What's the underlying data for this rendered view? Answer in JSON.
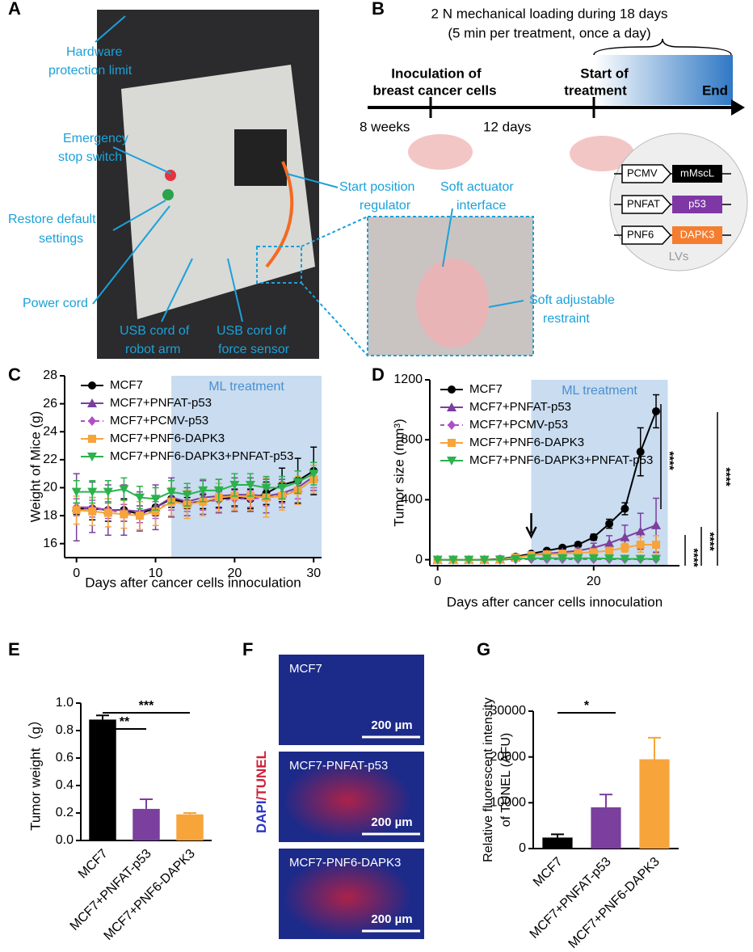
{
  "panel_letters": [
    "A",
    "B",
    "C",
    "D",
    "E",
    "F",
    "G"
  ],
  "panel_a": {
    "labels": [
      "Hardware",
      "protection limit",
      "Emergency",
      "stop switch",
      "Restore default",
      "settings",
      "Power cord",
      "USB cord of",
      "robot arm",
      "USB cord of",
      "force sensor",
      "Start position",
      "regulator",
      "Soft actuator",
      "interface",
      "Soft adjustable",
      "restraint"
    ]
  },
  "panel_b": {
    "title": [
      "2 N mechanical loading during 18 days",
      "(5 min per treatment, once a day)"
    ],
    "timeline": [
      "Inoculation of",
      "breast cancer cells",
      "Start of",
      "treatment",
      "End",
      "8 weeks",
      "12 days"
    ],
    "constructs": [
      [
        "PCMV",
        "mMscL"
      ],
      [
        "PNFAT",
        "p53"
      ],
      [
        "PNF6",
        "DAPK3"
      ]
    ],
    "vector": "LVs"
  },
  "panel_f": {
    "y_label": [
      "DAPI",
      "/TUNEL"
    ],
    "images": [
      "MCF7",
      "MCF7-PNFAT-p53",
      "MCF7-PNF6-DAPK3"
    ],
    "scale_bar": "200 µm"
  },
  "chart_data": [
    {
      "type": "line",
      "x_label": "Days after cancer cells innoculation",
      "y_label": "Weight of Mice (g)",
      "shade_label": "ML treatment",
      "shade": [
        12,
        31
      ],
      "x": [
        0,
        2,
        4,
        6,
        8,
        10,
        12,
        14,
        16,
        18,
        20,
        22,
        24,
        26,
        28,
        30
      ],
      "xlim": [
        -1.5,
        31
      ],
      "xticks": [
        0,
        10,
        20,
        30
      ],
      "ylim": [
        15,
        28
      ],
      "yticks": [
        16,
        18,
        20,
        22,
        24,
        26,
        28
      ],
      "series": [
        {
          "name": "MCF7",
          "color": "#000000",
          "marker": "circle",
          "values": [
            18.5,
            18.5,
            18.4,
            18.4,
            18.1,
            18.6,
            19.2,
            18.9,
            19.0,
            19.2,
            19.3,
            19.2,
            19.6,
            20.2,
            20.5,
            21.2
          ],
          "errors": [
            0.4,
            0.8,
            0.8,
            0.8,
            0.6,
            0.6,
            0.6,
            0.4,
            0.5,
            0.6,
            0.6,
            0.7,
            0.8,
            1.2,
            1.6,
            1.7
          ]
        },
        {
          "name": "MCF7+PNFAT-p53",
          "color": "#7b3f9e",
          "marker": "triangle",
          "values": [
            18.6,
            18.6,
            18.4,
            18.4,
            18.3,
            18.6,
            19.3,
            19.0,
            19.3,
            19.4,
            19.5,
            19.5,
            19.4,
            19.6,
            20.0,
            20.8
          ],
          "errors": [
            2.4,
            1.8,
            1.8,
            1.8,
            1.4,
            1.6,
            1.4,
            1.0,
            1.2,
            1.2,
            1.2,
            1.2,
            1.2,
            1.0,
            1.2,
            1.0
          ]
        },
        {
          "name": "MCF7+PCMV-p53",
          "color": "#b04fc4",
          "marker": "diamond",
          "dash": true,
          "values": [
            18.6,
            18.5,
            18.4,
            18.2,
            18.1,
            18.4,
            19.0,
            18.9,
            19.0,
            19.1,
            19.2,
            19.2,
            19.3,
            19.5,
            19.8,
            20.6
          ],
          "errors": [
            0.6,
            0.6,
            0.6,
            0.6,
            0.6,
            0.6,
            0.6,
            0.6,
            0.6,
            0.6,
            0.6,
            0.6,
            0.6,
            0.6,
            0.6,
            0.6
          ]
        },
        {
          "name": "MCF7+PNF6-DAPK3",
          "color": "#f7a43b",
          "marker": "square",
          "values": [
            18.4,
            18.3,
            18.2,
            18.1,
            18.0,
            18.3,
            19.0,
            18.8,
            19.0,
            19.3,
            19.4,
            19.4,
            19.3,
            19.4,
            19.8,
            20.6
          ],
          "errors": [
            1.0,
            1.0,
            1.0,
            1.0,
            1.0,
            1.0,
            1.0,
            1.0,
            1.0,
            1.0,
            1.0,
            1.0,
            1.4,
            1.0,
            1.0,
            1.0
          ]
        },
        {
          "name": "MCF7+PNF6-DAPK3+PNFAT-p53",
          "color": "#2bb24c",
          "marker": "triangle-down",
          "values": [
            19.7,
            19.7,
            19.7,
            19.9,
            19.3,
            19.2,
            19.7,
            19.5,
            19.8,
            19.8,
            20.2,
            20.2,
            20.0,
            20.0,
            20.4,
            21.0
          ],
          "errors": [
            0.8,
            0.8,
            0.8,
            0.8,
            0.8,
            0.8,
            0.8,
            0.8,
            0.8,
            0.8,
            0.8,
            0.8,
            0.8,
            0.8,
            0.8,
            0.8
          ]
        }
      ]
    },
    {
      "type": "line",
      "x_label": "Days after cancer cells innoculation",
      "y_label": "Tumor size (mm³)",
      "shade_label": "ML treatment",
      "shade": [
        12,
        29.5
      ],
      "arrow_x": 12,
      "x": [
        0,
        2,
        4,
        6,
        8,
        10,
        12,
        14,
        16,
        18,
        20,
        22,
        24,
        26,
        28
      ],
      "xlim": [
        -1,
        31
      ],
      "xticks": [
        0,
        20
      ],
      "ylim": [
        -40,
        1200
      ],
      "yticks": [
        0,
        400,
        800,
        1200
      ],
      "annotations": [
        "****",
        "****",
        "****",
        "****"
      ],
      "series": [
        {
          "name": "MCF7",
          "color": "#000000",
          "marker": "circle",
          "values": [
            0,
            0,
            0,
            0,
            5,
            20,
            40,
            60,
            80,
            100,
            150,
            240,
            340,
            720,
            990
          ],
          "errors": [
            0,
            0,
            0,
            0,
            2,
            5,
            8,
            10,
            12,
            15,
            20,
            30,
            40,
            160,
            110
          ]
        },
        {
          "name": "MCF7+PNFAT-p53",
          "color": "#7b3f9e",
          "marker": "triangle",
          "values": [
            0,
            0,
            0,
            0,
            2,
            15,
            30,
            40,
            50,
            60,
            80,
            110,
            150,
            190,
            230
          ],
          "errors": [
            0,
            0,
            0,
            0,
            2,
            5,
            8,
            10,
            12,
            20,
            30,
            50,
            80,
            120,
            180
          ]
        },
        {
          "name": "MCF7+PCMV-p53",
          "color": "#b04fc4",
          "marker": "diamond",
          "dash": true,
          "values": [
            0,
            0,
            0,
            0,
            0,
            2,
            3,
            3,
            3,
            3,
            3,
            3,
            3,
            3,
            3
          ],
          "errors": [
            0,
            0,
            0,
            0,
            0,
            1,
            1,
            1,
            1,
            1,
            1,
            1,
            1,
            1,
            1
          ]
        },
        {
          "name": "MCF7+PNF6-DAPK3",
          "color": "#f7a43b",
          "marker": "square",
          "values": [
            0,
            0,
            0,
            0,
            2,
            15,
            30,
            35,
            40,
            45,
            50,
            60,
            80,
            100,
            100
          ],
          "errors": [
            0,
            0,
            0,
            0,
            1,
            4,
            6,
            8,
            10,
            12,
            15,
            20,
            30,
            50,
            60
          ]
        },
        {
          "name": "MCF7+PNF6-DAPK3+PNFAT-p53",
          "color": "#2bb24c",
          "marker": "triangle-down",
          "values": [
            0,
            0,
            0,
            0,
            0,
            5,
            10,
            10,
            10,
            10,
            10,
            8,
            6,
            5,
            5
          ],
          "errors": [
            0,
            0,
            0,
            0,
            0,
            2,
            3,
            3,
            3,
            3,
            3,
            3,
            3,
            3,
            3
          ]
        }
      ]
    },
    {
      "type": "bar",
      "y_label": "Tumor weight（g）",
      "categories": [
        "MCF7",
        "MCF7+PNFAT-p53",
        "MCF7+PNF6-DAPK3"
      ],
      "colors": [
        "#000000",
        "#7b3f9e",
        "#f7a43b"
      ],
      "values": [
        0.88,
        0.23,
        0.19
      ],
      "errors": [
        0.03,
        0.07,
        0.01
      ],
      "ylim": [
        0,
        1.0
      ],
      "yticks": [
        {
          "value": 0,
          "label": "0.0"
        },
        0.2,
        0.4,
        0.6,
        0.8,
        {
          "value": 1,
          "label": "1.0"
        }
      ],
      "annotations": [
        "**",
        "***"
      ]
    },
    {
      "type": "bar",
      "y_label": [
        "Relative fluorescent intensity",
        "of TUNEL (AFU)"
      ],
      "categories": [
        "MCF7",
        "MCF7+PNFAT-p53",
        "MCF7+PNF6-DAPK3"
      ],
      "colors": [
        "#000000",
        "#7b3f9e",
        "#f7a43b"
      ],
      "values": [
        2400,
        9000,
        19500
      ],
      "errors": [
        700,
        2800,
        4700
      ],
      "ylim": [
        0,
        30000
      ],
      "yticks": [
        0,
        10000,
        20000,
        30000
      ],
      "annotations": [
        "*"
      ]
    }
  ]
}
